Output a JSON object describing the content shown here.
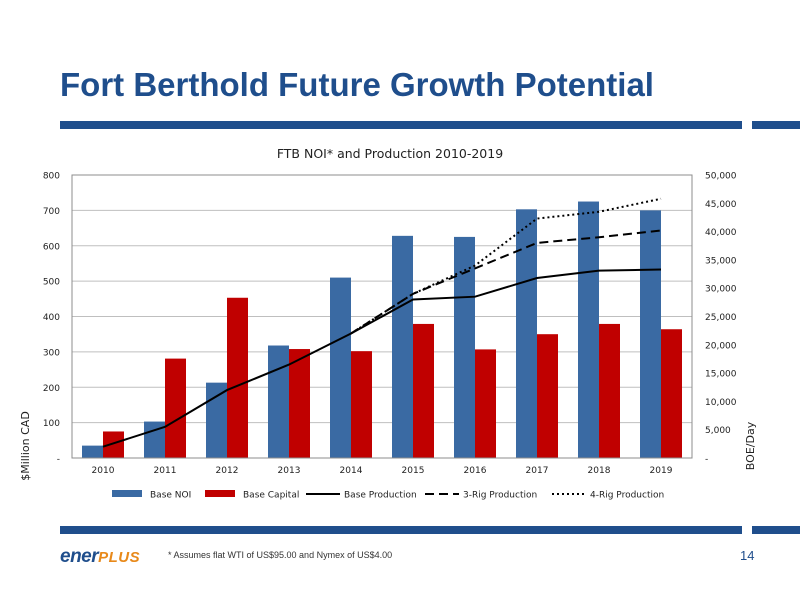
{
  "slide": {
    "title": "Fort Berthold Future Growth Potential",
    "footnote": "* Assumes flat WTI of US$95.00 and Nymex of US$4.00",
    "page_number": "14",
    "logo_text_1": "ener",
    "logo_text_2": "PLUS",
    "colors": {
      "title": "#1f4e8c",
      "rule": "#1f4e8c",
      "logo_accent": "#e8891a"
    }
  },
  "chart_data": {
    "type": "bar",
    "title": "FTB NOI* and Production 2010-2019",
    "categories": [
      "2010",
      "2011",
      "2012",
      "2013",
      "2014",
      "2015",
      "2016",
      "2017",
      "2018",
      "2019"
    ],
    "ylabel": "$Million CAD",
    "y2label": "BOE/Day",
    "ylim": [
      0,
      800
    ],
    "y2lim": [
      0,
      50000
    ],
    "y_ticks": [
      0,
      100,
      200,
      300,
      400,
      500,
      600,
      700,
      800
    ],
    "y_tick_labels": [
      "-",
      "100",
      "200",
      "300",
      "400",
      "500",
      "600",
      "700",
      "800"
    ],
    "y2_ticks": [
      0,
      5000,
      10000,
      15000,
      20000,
      25000,
      30000,
      35000,
      40000,
      45000,
      50000
    ],
    "y2_tick_labels": [
      "-",
      "5,000",
      "10,000",
      "15,000",
      "20,000",
      "25,000",
      "30,000",
      "35,000",
      "40,000",
      "45,000",
      "50,000"
    ],
    "grid": true,
    "legend_position": "bottom",
    "bar_series": [
      {
        "name": "Base NOI",
        "color": "#3a6aa3",
        "values": [
          35,
          103,
          213,
          318,
          510,
          628,
          625,
          703,
          725,
          700
        ]
      },
      {
        "name": "Base Capital",
        "color": "#c00000",
        "values": [
          75,
          281,
          453,
          308,
          302,
          379,
          307,
          350,
          379,
          364
        ]
      }
    ],
    "line_series": [
      {
        "name": "Base Production",
        "style": "solid",
        "values": [
          2000,
          5500,
          12000,
          16500,
          22000,
          28000,
          28500,
          31800,
          33100,
          33300
        ]
      },
      {
        "name": "3-Rig Production",
        "style": "dashed",
        "values": [
          null,
          null,
          null,
          null,
          22000,
          29000,
          33500,
          38000,
          39000,
          40200
        ]
      },
      {
        "name": "4-Rig Production",
        "style": "dotted",
        "values": [
          null,
          null,
          null,
          null,
          22000,
          29000,
          34000,
          42300,
          43500,
          45800
        ]
      }
    ]
  }
}
